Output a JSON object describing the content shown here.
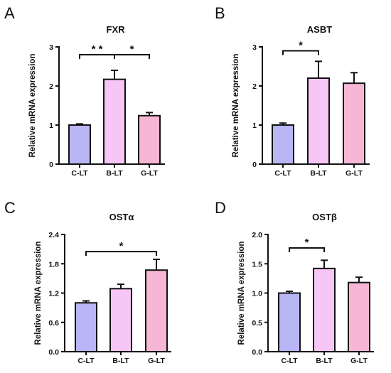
{
  "chart_data": [
    {
      "panel": "A",
      "type": "bar",
      "title": "FXR",
      "ylabel": "Relative mRNA expression",
      "categories": [
        "C-LT",
        "B-LT",
        "G-LT"
      ],
      "values": [
        1.0,
        2.17,
        1.24
      ],
      "errors": [
        0.03,
        0.23,
        0.08
      ],
      "colors": [
        "#B8B6F5",
        "#F6C6F6",
        "#F7B6D6"
      ],
      "ylim": [
        0,
        3
      ],
      "yticks": [
        "0",
        "1",
        "2",
        "3"
      ],
      "ytick_values": [
        0,
        1,
        2,
        3
      ],
      "significance": [
        {
          "from": 0,
          "to": 1,
          "y": 2.8,
          "label": "* *"
        },
        {
          "from": 1,
          "to": 2,
          "y": 2.8,
          "label": "*"
        }
      ]
    },
    {
      "panel": "B",
      "type": "bar",
      "title": "ASBT",
      "ylabel": "Relative mRNA expression",
      "categories": [
        "C-LT",
        "B-LT",
        "G-LT"
      ],
      "values": [
        1.0,
        2.2,
        2.07
      ],
      "errors": [
        0.05,
        0.43,
        0.27
      ],
      "colors": [
        "#B8B6F5",
        "#F6C6F6",
        "#F7B6D6"
      ],
      "ylim": [
        0,
        3
      ],
      "yticks": [
        "0",
        "1",
        "2",
        "3"
      ],
      "ytick_values": [
        0,
        1,
        2,
        3
      ],
      "significance": [
        {
          "from": 0,
          "to": 1,
          "y": 2.9,
          "label": "*"
        }
      ]
    },
    {
      "panel": "C",
      "type": "bar",
      "title": "OSTα",
      "ylabel": "Relative mRNA expression",
      "categories": [
        "C-LT",
        "B-LT",
        "G-LT"
      ],
      "values": [
        1.0,
        1.29,
        1.67
      ],
      "errors": [
        0.04,
        0.09,
        0.22
      ],
      "colors": [
        "#B8B6F5",
        "#F6C6F6",
        "#F7B6D6"
      ],
      "ylim": [
        0,
        2.4
      ],
      "yticks": [
        "0.0",
        "0.6",
        "1.2",
        "1.8",
        "2.4"
      ],
      "ytick_values": [
        0,
        0.6,
        1.2,
        1.8,
        2.4
      ],
      "significance": [
        {
          "from": 0,
          "to": 2,
          "y": 2.05,
          "label": "*"
        }
      ]
    },
    {
      "panel": "D",
      "type": "bar",
      "title": "OSTβ",
      "ylabel": "Relative mRNA expression",
      "categories": [
        "C-LT",
        "B-LT",
        "G-LT"
      ],
      "values": [
        1.0,
        1.42,
        1.18
      ],
      "errors": [
        0.03,
        0.14,
        0.09
      ],
      "colors": [
        "#B8B6F5",
        "#F6C6F6",
        "#F7B6D6"
      ],
      "ylim": [
        0,
        2.0
      ],
      "yticks": [
        "0.0",
        "0.5",
        "1.0",
        "1.5",
        "2.0"
      ],
      "ytick_values": [
        0,
        0.5,
        1.0,
        1.5,
        2.0
      ],
      "significance": [
        {
          "from": 0,
          "to": 1,
          "y": 1.77,
          "label": "*"
        }
      ]
    }
  ]
}
